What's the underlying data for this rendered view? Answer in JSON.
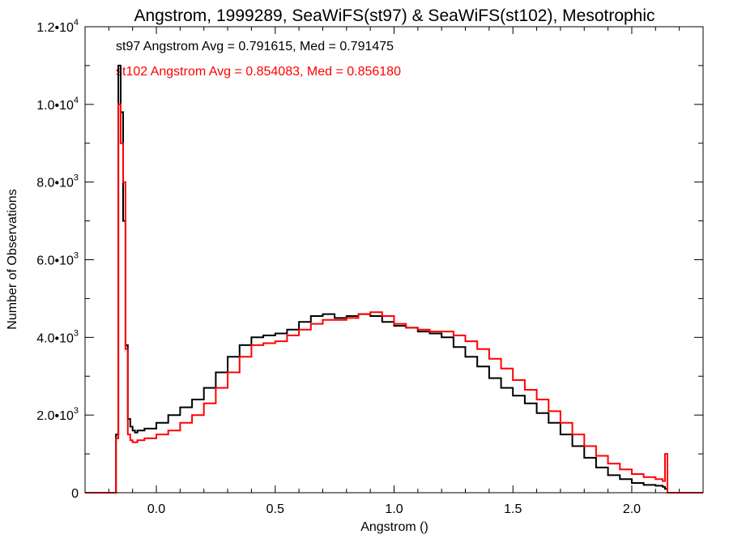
{
  "chart_data": {
    "type": "line",
    "title": "Angstrom, 1999289, SeaWiFS(st97) & SeaWiFS(st102), Mesotrophic",
    "xlabel": "Angstrom ()",
    "ylabel": "Number of Observations",
    "xlim": [
      -0.3,
      2.3
    ],
    "ylim": [
      0,
      12000
    ],
    "x_ticks": [
      {
        "value": 0.0,
        "label": "0.0"
      },
      {
        "value": 0.5,
        "label": "0.5"
      },
      {
        "value": 1.0,
        "label": "1.0"
      },
      {
        "value": 1.5,
        "label": "1.5"
      },
      {
        "value": 2.0,
        "label": "2.0"
      }
    ],
    "y_ticks": [
      {
        "value": 0,
        "mantissa": "0",
        "exp": ""
      },
      {
        "value": 2000,
        "mantissa": "2.0•10",
        "exp": "3"
      },
      {
        "value": 4000,
        "mantissa": "4.0•10",
        "exp": "3"
      },
      {
        "value": 6000,
        "mantissa": "6.0•10",
        "exp": "3"
      },
      {
        "value": 8000,
        "mantissa": "8.0•10",
        "exp": "3"
      },
      {
        "value": 10000,
        "mantissa": "1.0•10",
        "exp": "4"
      },
      {
        "value": 12000,
        "mantissa": "1.2•10",
        "exp": "4"
      }
    ],
    "grid": false,
    "annotations": [
      {
        "text": "st97 Angstrom Avg = 0.791615, Med = 0.791475",
        "color": "#000000"
      },
      {
        "text": "st102 Angstrom Avg = 0.854083, Med = 0.856180",
        "color": "#ff0000"
      }
    ],
    "series": [
      {
        "color": "#000000",
        "x": [
          -0.3,
          -0.18,
          -0.17,
          -0.16,
          -0.15,
          -0.14,
          -0.13,
          -0.12,
          -0.11,
          -0.1,
          -0.09,
          -0.08,
          -0.05,
          0.0,
          0.05,
          0.1,
          0.15,
          0.2,
          0.25,
          0.3,
          0.35,
          0.4,
          0.45,
          0.5,
          0.55,
          0.6,
          0.65,
          0.7,
          0.75,
          0.8,
          0.85,
          0.9,
          0.95,
          1.0,
          1.05,
          1.1,
          1.15,
          1.2,
          1.25,
          1.3,
          1.35,
          1.4,
          1.45,
          1.5,
          1.55,
          1.6,
          1.65,
          1.7,
          1.75,
          1.8,
          1.85,
          1.9,
          1.95,
          2.0,
          2.05,
          2.1,
          2.13,
          2.14,
          2.15,
          2.3
        ],
        "y": [
          0,
          0,
          1500,
          11000,
          9800,
          7000,
          3800,
          1900,
          1700,
          1600,
          1550,
          1600,
          1650,
          1800,
          2000,
          2200,
          2400,
          2700,
          3100,
          3500,
          3800,
          4000,
          4050,
          4100,
          4200,
          4400,
          4550,
          4600,
          4500,
          4550,
          4600,
          4550,
          4400,
          4300,
          4250,
          4150,
          4100,
          4000,
          3750,
          3500,
          3250,
          2950,
          2700,
          2500,
          2300,
          2050,
          1800,
          1500,
          1200,
          900,
          650,
          450,
          350,
          250,
          200,
          180,
          150,
          100,
          0,
          0
        ]
      },
      {
        "color": "#ff0000",
        "x": [
          -0.3,
          -0.18,
          -0.17,
          -0.16,
          -0.15,
          -0.14,
          -0.13,
          -0.12,
          -0.11,
          -0.1,
          -0.09,
          -0.08,
          -0.05,
          0.0,
          0.05,
          0.1,
          0.15,
          0.2,
          0.25,
          0.3,
          0.35,
          0.4,
          0.45,
          0.5,
          0.55,
          0.6,
          0.65,
          0.7,
          0.75,
          0.8,
          0.85,
          0.9,
          0.95,
          1.0,
          1.05,
          1.1,
          1.15,
          1.2,
          1.25,
          1.3,
          1.35,
          1.4,
          1.45,
          1.5,
          1.55,
          1.6,
          1.65,
          1.7,
          1.75,
          1.8,
          1.85,
          1.9,
          1.95,
          2.0,
          2.05,
          2.1,
          2.13,
          2.14,
          2.15,
          2.3
        ],
        "y": [
          0,
          0,
          1400,
          10000,
          9000,
          8000,
          3700,
          1500,
          1350,
          1300,
          1300,
          1350,
          1400,
          1500,
          1600,
          1800,
          2000,
          2300,
          2700,
          3100,
          3500,
          3800,
          3850,
          3900,
          4050,
          4200,
          4350,
          4450,
          4450,
          4500,
          4600,
          4650,
          4550,
          4350,
          4250,
          4200,
          4150,
          4150,
          4050,
          3900,
          3700,
          3450,
          3200,
          2900,
          2650,
          2400,
          2100,
          1800,
          1500,
          1200,
          950,
          750,
          600,
          480,
          400,
          350,
          300,
          1000,
          0,
          0
        ]
      }
    ]
  }
}
